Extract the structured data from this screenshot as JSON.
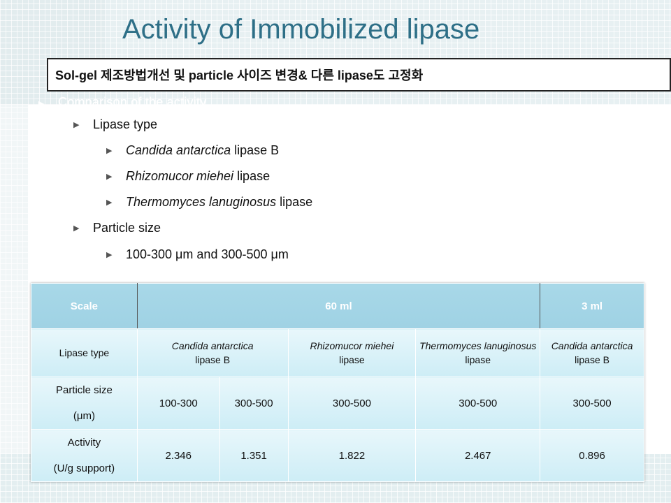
{
  "slide": {
    "title": "Activity of Immobilized lipase",
    "subtitle": "Sol-gel 제조방법개선 및 particle 사이즈 변경& 다른 lipase도 고정화",
    "faded_line": "Comparison of the activity"
  },
  "bullets": [
    {
      "level": 1,
      "parts": [
        {
          "text": "Lipase type",
          "italic": false
        }
      ]
    },
    {
      "level": 2,
      "parts": [
        {
          "text": "Candida antarctica",
          "italic": true
        },
        {
          "text": " lipase B",
          "italic": false
        }
      ]
    },
    {
      "level": 2,
      "parts": [
        {
          "text": "Rhizomucor miehei",
          "italic": true
        },
        {
          "text": " lipase",
          "italic": false
        }
      ]
    },
    {
      "level": 2,
      "parts": [
        {
          "text": "Thermomyces lanuginosus",
          "italic": true
        },
        {
          "text": " lipase",
          "italic": false
        }
      ]
    },
    {
      "level": 1,
      "parts": [
        {
          "text": "Particle size",
          "italic": false
        }
      ]
    },
    {
      "level": 2,
      "parts": [
        {
          "text": "100-300 μm and 300-500 μm",
          "italic": false
        }
      ]
    }
  ],
  "table": {
    "header": {
      "scale": "Scale",
      "scale_60": "60 ml",
      "scale_3": "3 ml"
    },
    "lipase_row": {
      "label": "Lipase type",
      "cols": [
        {
          "italic": "Candida antarctica",
          "plain": "lipase B"
        },
        {
          "italic": "Rhizomucor miehei",
          "plain": "lipase"
        },
        {
          "italic": "Thermomyces lanuginosus",
          "plain": "lipase"
        },
        {
          "italic": "Candida antarctica",
          "plain": "lipase B"
        }
      ]
    },
    "particle_row": {
      "label_line1": "Particle size",
      "label_line2": "(μm)",
      "values": [
        "100-300",
        "300-500",
        "300-500",
        "300-500",
        "300-500"
      ]
    },
    "activity_row": {
      "label_line1": "Activity",
      "label_line2": "(U/g support)",
      "values": [
        "2.346",
        "1.351",
        "1.822",
        "2.467",
        "0.896"
      ]
    }
  }
}
